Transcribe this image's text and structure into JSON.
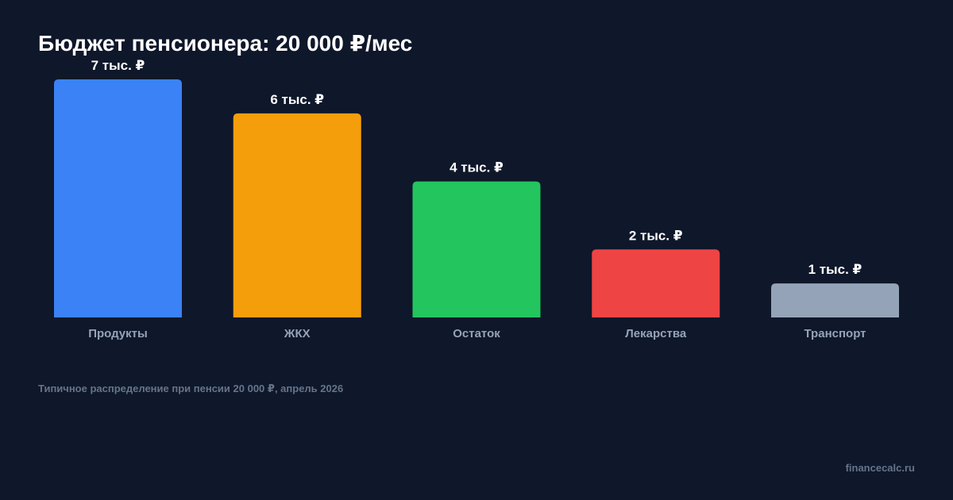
{
  "chart_data": {
    "type": "bar",
    "title": "Бюджет пенсионера: 20 000 ₽/мес",
    "categories": [
      "Продукты",
      "ЖКХ",
      "Остаток",
      "Лекарства",
      "Транспорт"
    ],
    "values": [
      7,
      6,
      4,
      2,
      1
    ],
    "value_labels": [
      "7 тыс. ₽",
      "6 тыс. ₽",
      "4 тыс. ₽",
      "2 тыс. ₽",
      "1 тыс. ₽"
    ],
    "colors": [
      "#3b82f6",
      "#f59e0b",
      "#22c55e",
      "#ef4444",
      "#94a3b8"
    ],
    "ylabel": "",
    "xlabel": "",
    "ylim": [
      0,
      7
    ],
    "grid": false,
    "legend": "none"
  },
  "footer": {
    "note": "Типичное распределение при пенсии 20 000 ₽, апрель 2026",
    "source": "financecalc.ru"
  }
}
